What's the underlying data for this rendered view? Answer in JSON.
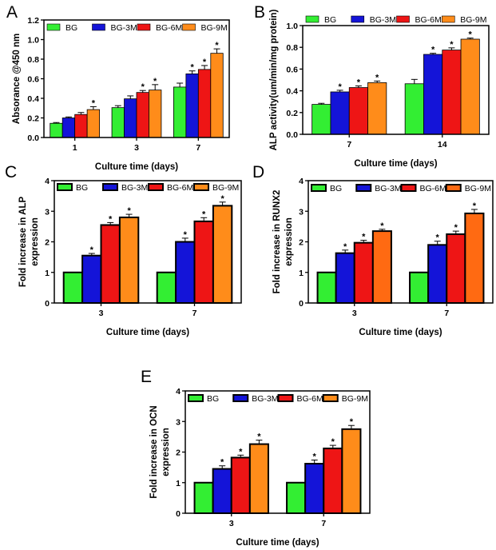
{
  "colors": {
    "BG": "#33ee33",
    "BG-3M": "#1414d8",
    "BG-6M": "#ee1515",
    "BG-9M": "#ff8c1a",
    "BG-9M_D": "#ff6a12"
  },
  "chart_data": [
    {
      "panel": "A",
      "type": "bar",
      "categories": [
        "1",
        "3",
        "7"
      ],
      "xlabel": "Culture time (days)",
      "ylabel": [
        "Absorance @450 nm"
      ],
      "ylim": [
        0,
        1.2
      ],
      "yticks": [
        "0.0",
        "0.2",
        "0.4",
        "0.6",
        "0.8",
        "1.0",
        "1.2"
      ],
      "legend": "top",
      "series": [
        {
          "name": "BG",
          "values": [
            0.145,
            0.305,
            0.515
          ],
          "errors": [
            0.008,
            0.02,
            0.04
          ],
          "significant": [
            false,
            false,
            false
          ]
        },
        {
          "name": "BG-3M",
          "values": [
            0.2,
            0.395,
            0.65
          ],
          "errors": [
            0.01,
            0.03,
            0.03
          ],
          "significant": [
            false,
            false,
            true
          ]
        },
        {
          "name": "BG-6M",
          "values": [
            0.235,
            0.46,
            0.695
          ],
          "errors": [
            0.02,
            0.02,
            0.04
          ],
          "significant": [
            false,
            true,
            true
          ]
        },
        {
          "name": "BG-9M",
          "values": [
            0.285,
            0.485,
            0.86
          ],
          "errors": [
            0.03,
            0.055,
            0.045
          ],
          "significant": [
            true,
            true,
            true
          ]
        }
      ]
    },
    {
      "panel": "B",
      "type": "bar",
      "categories": [
        "7",
        "14"
      ],
      "xlabel": "Culture time (days)",
      "ylabel": [
        "ALP activity(um/min/mg protein)"
      ],
      "ylim": [
        0,
        1.0
      ],
      "yticks": [
        "0.0",
        "0.2",
        "0.4",
        "0.6",
        "0.8",
        "1.0"
      ],
      "legend": "top",
      "series": [
        {
          "name": "BG",
          "values": [
            0.275,
            0.465
          ],
          "errors": [
            0.01,
            0.04
          ],
          "significant": [
            false,
            false
          ]
        },
        {
          "name": "BG-3M",
          "values": [
            0.39,
            0.735
          ],
          "errors": [
            0.015,
            0.01
          ],
          "significant": [
            true,
            true
          ]
        },
        {
          "name": "BG-6M",
          "values": [
            0.43,
            0.775
          ],
          "errors": [
            0.015,
            0.02
          ],
          "significant": [
            true,
            true
          ]
        },
        {
          "name": "BG-9M",
          "values": [
            0.475,
            0.875
          ],
          "errors": [
            0.015,
            0.01
          ],
          "significant": [
            true,
            true
          ]
        }
      ]
    },
    {
      "panel": "C",
      "type": "bar",
      "categories": [
        "3",
        "7"
      ],
      "xlabel": "Culture time (days)",
      "ylabel": [
        "Fold increase in ALP",
        "expression"
      ],
      "ylim": [
        0,
        4
      ],
      "yticks": [
        "0",
        "1",
        "2",
        "3",
        "4"
      ],
      "legend": "top",
      "series": [
        {
          "name": "BG",
          "values": [
            1,
            1
          ],
          "errors": [
            0,
            0
          ],
          "significant": [
            false,
            false
          ]
        },
        {
          "name": "BG-3M",
          "values": [
            1.55,
            2.0
          ],
          "errors": [
            0.07,
            0.12
          ],
          "significant": [
            true,
            true
          ]
        },
        {
          "name": "BG-6M",
          "values": [
            2.55,
            2.67
          ],
          "errors": [
            0.08,
            0.12
          ],
          "significant": [
            true,
            true
          ]
        },
        {
          "name": "BG-9M",
          "values": [
            2.8,
            3.18
          ],
          "errors": [
            0.1,
            0.12
          ],
          "significant": [
            true,
            true
          ]
        }
      ]
    },
    {
      "panel": "D",
      "type": "bar",
      "categories": [
        "3",
        "7"
      ],
      "xlabel": "Culture time (days)",
      "ylabel": [
        "Fold increase in RUNX2",
        "expression"
      ],
      "ylim": [
        0,
        4
      ],
      "yticks": [
        "0",
        "1",
        "2",
        "3",
        "4"
      ],
      "legend": "top",
      "series": [
        {
          "name": "BG",
          "values": [
            1,
            1
          ],
          "errors": [
            0,
            0
          ],
          "significant": [
            false,
            false
          ]
        },
        {
          "name": "BG-3M",
          "values": [
            1.63,
            1.9
          ],
          "errors": [
            0.1,
            0.12
          ],
          "significant": [
            true,
            true
          ]
        },
        {
          "name": "BG-6M",
          "values": [
            1.97,
            2.25
          ],
          "errors": [
            0.08,
            0.1
          ],
          "significant": [
            true,
            true
          ]
        },
        {
          "name": "BG-9M",
          "values": [
            2.35,
            2.93
          ],
          "errors": [
            0.06,
            0.13
          ],
          "significant": [
            true,
            true
          ]
        }
      ]
    },
    {
      "panel": "E",
      "type": "bar",
      "categories": [
        "3",
        "7"
      ],
      "xlabel": "Culture time (days)",
      "ylabel": [
        "Fold increase in OCN",
        "expression"
      ],
      "ylim": [
        0,
        4
      ],
      "yticks": [
        "0",
        "1",
        "2",
        "3",
        "4"
      ],
      "legend": "top",
      "series": [
        {
          "name": "BG",
          "values": [
            1,
            1
          ],
          "errors": [
            0,
            0
          ],
          "significant": [
            false,
            false
          ]
        },
        {
          "name": "BG-3M",
          "values": [
            1.45,
            1.62
          ],
          "errors": [
            0.1,
            0.12
          ],
          "significant": [
            true,
            true
          ]
        },
        {
          "name": "BG-6M",
          "values": [
            1.82,
            2.12
          ],
          "errors": [
            0.08,
            0.1
          ],
          "significant": [
            true,
            true
          ]
        },
        {
          "name": "BG-9M",
          "values": [
            2.26,
            2.75
          ],
          "errors": [
            0.13,
            0.12
          ],
          "significant": [
            true,
            true
          ]
        }
      ]
    }
  ],
  "significance_marker": "*"
}
